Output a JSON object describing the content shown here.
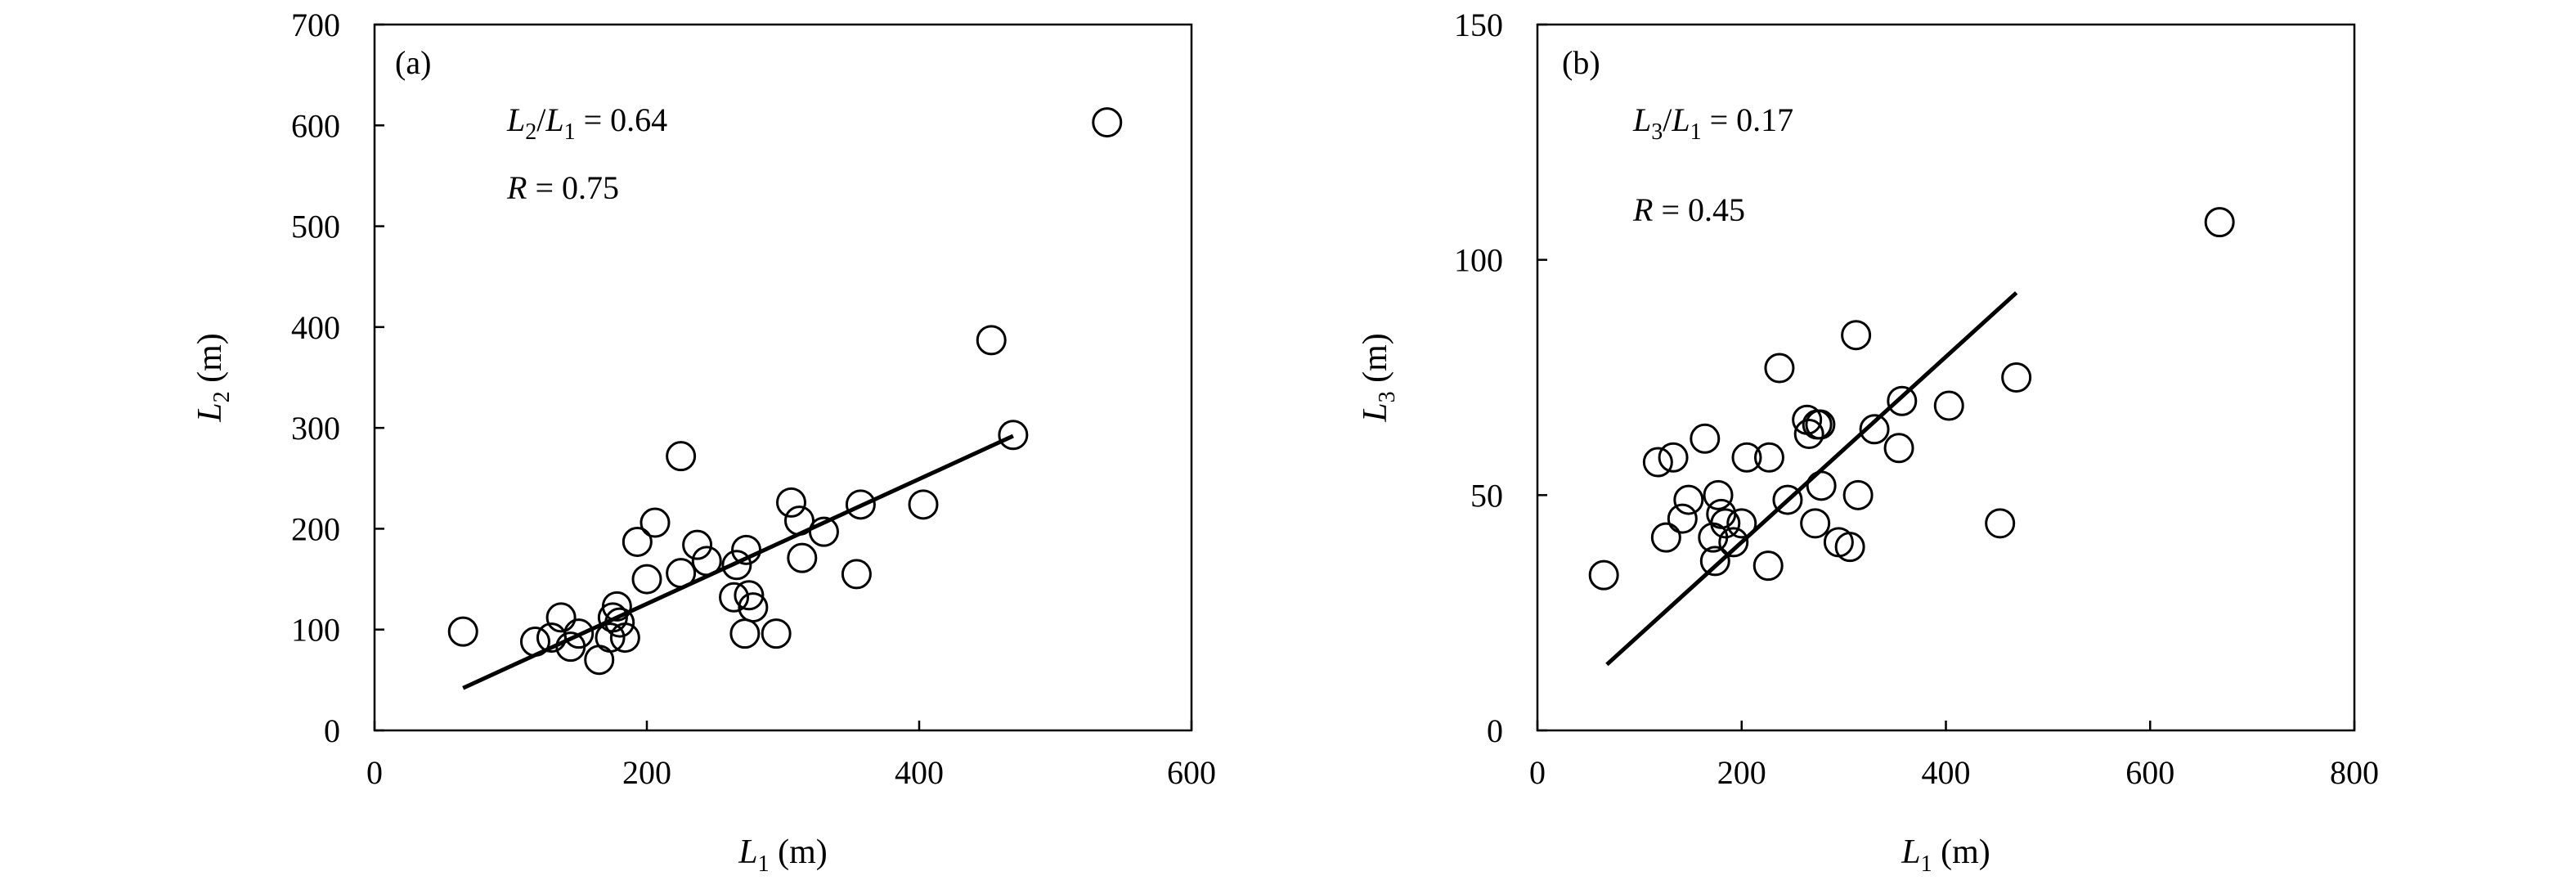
{
  "chart_data": [
    {
      "type": "scatter",
      "panel_label": "(a)",
      "xlabel": {
        "symbol": "L",
        "sub": "1",
        "unit": " (m)"
      },
      "ylabel": {
        "symbol": "L",
        "sub": "2",
        "unit": " (m)"
      },
      "xlim": [
        0,
        600
      ],
      "ylim": [
        0,
        700
      ],
      "xticks": [
        0,
        200,
        400,
        600
      ],
      "yticks": [
        0,
        100,
        200,
        300,
        400,
        500,
        600,
        700
      ],
      "annotations": [
        {
          "parts": [
            {
              "t": "L",
              "style": "italic"
            },
            {
              "t": "2",
              "style": "sub"
            },
            {
              "t": "/",
              "style": "normal"
            },
            {
              "t": "L",
              "style": "italic"
            },
            {
              "t": "1",
              "style": "sub"
            },
            {
              "t": " = 0.64",
              "style": "normal"
            }
          ]
        },
        {
          "parts": [
            {
              "t": "R",
              "style": "italic"
            },
            {
              "t": " = 0.75",
              "style": "normal"
            }
          ]
        }
      ],
      "points": [
        [
          65,
          98
        ],
        [
          118,
          88
        ],
        [
          130,
          92
        ],
        [
          137,
          112
        ],
        [
          144,
          83
        ],
        [
          150,
          96
        ],
        [
          165,
          70
        ],
        [
          173,
          92
        ],
        [
          175,
          112
        ],
        [
          178,
          123
        ],
        [
          180,
          107
        ],
        [
          184,
          92
        ],
        [
          193,
          187
        ],
        [
          200,
          150
        ],
        [
          206,
          206
        ],
        [
          225,
          272
        ],
        [
          225,
          156
        ],
        [
          237,
          184
        ],
        [
          244,
          168
        ],
        [
          264,
          132
        ],
        [
          266,
          164
        ],
        [
          272,
          96
        ],
        [
          273,
          179
        ],
        [
          275,
          134
        ],
        [
          278,
          122
        ],
        [
          295,
          96
        ],
        [
          306,
          226
        ],
        [
          312,
          208
        ],
        [
          314,
          171
        ],
        [
          330,
          197
        ],
        [
          354,
          155
        ],
        [
          357,
          224
        ],
        [
          403,
          224
        ],
        [
          453,
          387
        ],
        [
          469,
          293
        ],
        [
          538,
          603
        ]
      ],
      "fit_line": {
        "x": [
          65,
          469
        ],
        "y": [
          42,
          292
        ]
      }
    },
    {
      "type": "scatter",
      "panel_label": "(b)",
      "xlabel": {
        "symbol": "L",
        "sub": "1",
        "unit": " (m)"
      },
      "ylabel": {
        "symbol": "L",
        "sub": "3",
        "unit": " (m)"
      },
      "xlim": [
        0,
        800
      ],
      "ylim": [
        0,
        150
      ],
      "xticks": [
        0,
        200,
        400,
        600,
        800
      ],
      "yticks": [
        0,
        50,
        100,
        150
      ],
      "annotations": [
        {
          "parts": [
            {
              "t": "L",
              "style": "italic"
            },
            {
              "t": "3",
              "style": "sub"
            },
            {
              "t": "/",
              "style": "normal"
            },
            {
              "t": "L",
              "style": "italic"
            },
            {
              "t": "1",
              "style": "sub"
            },
            {
              "t": " = 0.17",
              "style": "normal"
            }
          ]
        },
        {
          "parts": [
            {
              "t": "R",
              "style": "italic"
            },
            {
              "t": " = 0.45",
              "style": "normal"
            }
          ]
        }
      ],
      "points": [
        [
          65,
          33
        ],
        [
          118,
          57
        ],
        [
          126,
          41
        ],
        [
          133,
          58
        ],
        [
          142,
          45
        ],
        [
          148,
          49
        ],
        [
          164,
          62
        ],
        [
          172,
          41
        ],
        [
          174,
          36
        ],
        [
          177,
          50
        ],
        [
          180,
          46
        ],
        [
          184,
          44
        ],
        [
          192,
          40
        ],
        [
          200,
          44
        ],
        [
          205,
          58
        ],
        [
          226,
          35
        ],
        [
          227,
          58
        ],
        [
          237,
          77
        ],
        [
          245,
          49
        ],
        [
          264,
          66
        ],
        [
          266,
          63
        ],
        [
          272,
          44
        ],
        [
          274,
          65
        ],
        [
          277,
          65
        ],
        [
          278,
          52
        ],
        [
          295,
          40
        ],
        [
          306,
          39
        ],
        [
          312,
          84
        ],
        [
          314,
          50
        ],
        [
          330,
          64
        ],
        [
          354,
          60
        ],
        [
          357,
          70
        ],
        [
          403,
          69
        ],
        [
          453,
          44
        ],
        [
          469,
          75
        ],
        [
          668,
          108
        ]
      ],
      "fit_line": {
        "x": [
          68,
          469
        ],
        "y": [
          14,
          93
        ]
      }
    }
  ]
}
